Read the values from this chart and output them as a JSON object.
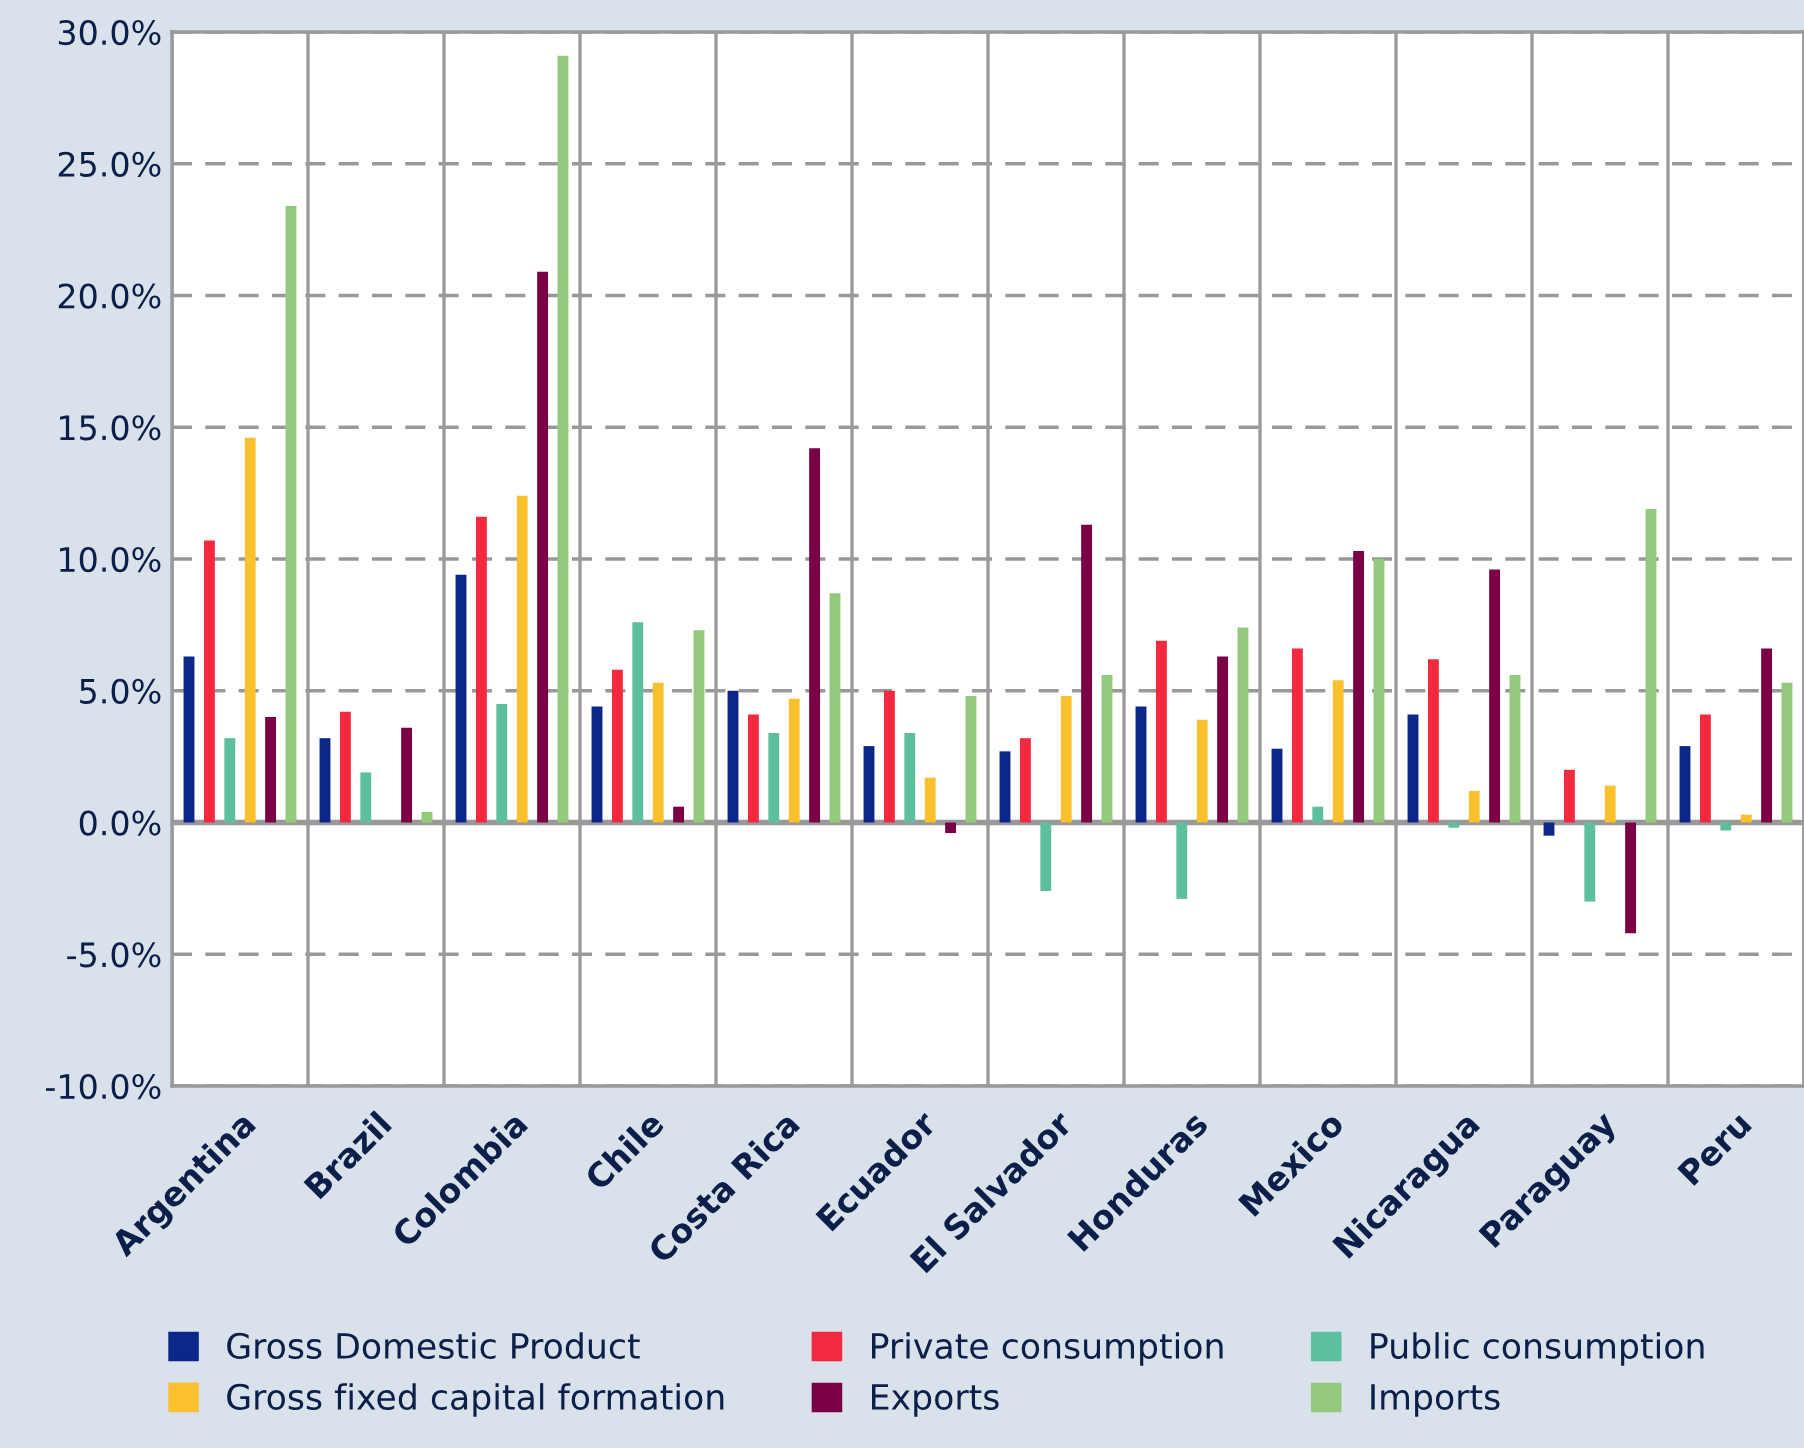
{
  "chart_data": {
    "type": "bar",
    "categories": [
      "Argentina",
      "Brazil",
      "Colombia",
      "Chile",
      "Costa Rica",
      "Ecuador",
      "El Salvador",
      "Honduras",
      "Mexico",
      "Nicaragua",
      "Paraguay",
      "Peru"
    ],
    "series": [
      {
        "name": "Gross Domestic Product",
        "color": "#0a2789",
        "values": [
          6.3,
          3.2,
          9.4,
          4.4,
          5.0,
          2.9,
          2.7,
          4.4,
          2.8,
          4.1,
          -0.5,
          2.9
        ]
      },
      {
        "name": "Private consumption",
        "color": "#f2293f",
        "values": [
          10.7,
          4.2,
          11.6,
          5.8,
          4.1,
          5.0,
          3.2,
          6.9,
          6.6,
          6.2,
          2.0,
          4.1
        ]
      },
      {
        "name": "Public consumption",
        "color": "#5bbfa0",
        "values": [
          3.2,
          1.9,
          4.5,
          7.6,
          3.4,
          3.4,
          -2.6,
          -2.9,
          0.6,
          -0.2,
          -3.0,
          -0.3
        ]
      },
      {
        "name": "Gross fixed capital formation",
        "color": "#fbc02d",
        "values": [
          14.6,
          0.0,
          12.4,
          5.3,
          4.7,
          1.7,
          4.8,
          3.9,
          5.4,
          1.2,
          1.4,
          0.3
        ]
      },
      {
        "name": "Exports",
        "color": "#7b0046",
        "values": [
          4.0,
          3.6,
          20.9,
          0.6,
          14.2,
          -0.4,
          11.3,
          6.3,
          10.3,
          9.6,
          -4.2,
          6.6
        ]
      },
      {
        "name": "Imports",
        "color": "#92c97c",
        "values": [
          23.4,
          0.4,
          29.1,
          7.3,
          8.7,
          4.8,
          5.6,
          7.4,
          10.0,
          5.6,
          11.9,
          5.3
        ]
      }
    ],
    "ylim": [
      -10,
      30
    ],
    "yticks": [
      {
        "value": -10,
        "label": "-10.0%"
      },
      {
        "value": -5,
        "label": "-5.0%"
      },
      {
        "value": 0,
        "label": "0.0%"
      },
      {
        "value": 5,
        "label": "5.0%"
      },
      {
        "value": 10,
        "label": "10.0%"
      },
      {
        "value": 15,
        "label": "15.0%"
      },
      {
        "value": 20,
        "label": "20.0%"
      },
      {
        "value": 25,
        "label": "25.0%"
      },
      {
        "value": 30,
        "label": "30.0%"
      }
    ],
    "grid": true,
    "legend": "bottom"
  }
}
